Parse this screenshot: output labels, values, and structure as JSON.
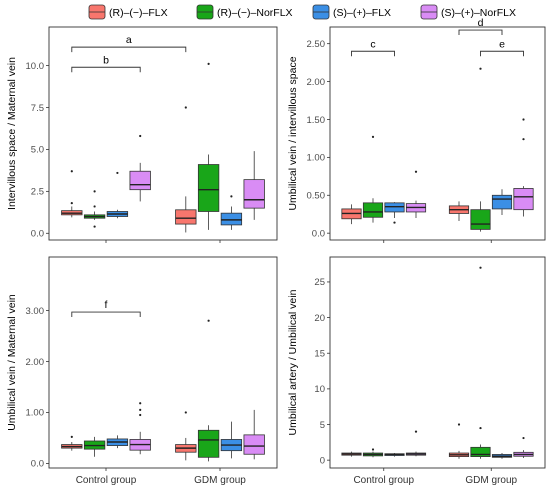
{
  "legend": {
    "position": "top",
    "items": [
      {
        "label": "(R)–(−)–FLX",
        "color": "#F8766D"
      },
      {
        "label": "(R)–(−)–NorFLX",
        "color": "#19A619"
      },
      {
        "label": "(S)–(+)–FLX",
        "color": "#3B8FE5"
      },
      {
        "label": "(S)–(+)–NorFLX",
        "color": "#D98CF5"
      }
    ]
  },
  "chart_data": [
    {
      "type": "box",
      "ylabel": "Intervillous space / Maternal vein",
      "categories": [
        "Control group",
        "GDM group"
      ],
      "ylim": [
        -0.4,
        12.3
      ],
      "yticks": [
        0.0,
        2.5,
        5.0,
        7.5,
        10.0
      ],
      "ytick_labels": [
        "0.0",
        "2.5",
        "5.0",
        "7.5",
        "10.0"
      ],
      "grid": false,
      "series": [
        {
          "name": "(R)–(−)–FLX",
          "boxes": [
            {
              "group": "Control group",
              "min": 0.95,
              "q1": 1.1,
              "median": 1.2,
              "q3": 1.35,
              "max": 1.6,
              "outliers": [
                3.7,
                1.8
              ]
            },
            {
              "group": "GDM group",
              "min": 0.05,
              "q1": 0.55,
              "median": 0.9,
              "q3": 1.4,
              "max": 2.2,
              "outliers": [
                7.5
              ]
            }
          ]
        },
        {
          "name": "(R)–(−)–NorFLX",
          "boxes": [
            {
              "group": "Control group",
              "min": 0.8,
              "q1": 0.9,
              "median": 1.0,
              "q3": 1.1,
              "max": 1.3,
              "outliers": [
                2.5,
                1.6,
                0.4
              ]
            },
            {
              "group": "GDM group",
              "min": 0.2,
              "q1": 1.3,
              "median": 2.6,
              "q3": 4.1,
              "max": 4.7,
              "outliers": [
                10.1
              ]
            }
          ]
        },
        {
          "name": "(S)–(+)–FLX",
          "boxes": [
            {
              "group": "Control group",
              "min": 0.9,
              "q1": 1.0,
              "median": 1.15,
              "q3": 1.3,
              "max": 1.4,
              "outliers": [
                3.6
              ]
            },
            {
              "group": "GDM group",
              "min": 0.2,
              "q1": 0.5,
              "median": 0.8,
              "q3": 1.2,
              "max": 1.6,
              "outliers": [
                2.2
              ]
            }
          ]
        },
        {
          "name": "(S)–(+)–NorFLX",
          "boxes": [
            {
              "group": "Control group",
              "min": 1.9,
              "q1": 2.6,
              "median": 2.9,
              "q3": 3.7,
              "max": 4.2,
              "outliers": [
                5.8
              ]
            },
            {
              "group": "GDM group",
              "min": 0.8,
              "q1": 1.5,
              "median": 2.0,
              "q3": 3.2,
              "max": 4.9,
              "outliers": []
            }
          ]
        }
      ],
      "brackets": [
        {
          "label": "a",
          "from_group": 0,
          "from_series": 0,
          "to_group": 1,
          "to_series": 0,
          "y": 11.1
        },
        {
          "label": "b",
          "from_group": 0,
          "from_series": 0,
          "to_group": 0,
          "to_series": 3,
          "y": 9.9
        }
      ]
    },
    {
      "type": "box",
      "ylabel": "Umbilical vein / intervillous space",
      "categories": [
        "Control group",
        "GDM group"
      ],
      "ylim": [
        -0.09,
        2.72
      ],
      "yticks": [
        0.0,
        0.5,
        1.0,
        1.5,
        2.0,
        2.5
      ],
      "ytick_labels": [
        "0.0",
        "0.50",
        "1.00",
        "1.50",
        "2.00",
        "2.50"
      ],
      "grid": false,
      "series": [
        {
          "name": "(R)–(−)–FLX",
          "boxes": [
            {
              "group": "Control group",
              "min": 0.12,
              "q1": 0.19,
              "median": 0.26,
              "q3": 0.32,
              "max": 0.38,
              "outliers": []
            },
            {
              "group": "GDM group",
              "min": 0.16,
              "q1": 0.26,
              "median": 0.31,
              "q3": 0.36,
              "max": 0.42,
              "outliers": []
            }
          ]
        },
        {
          "name": "(R)–(−)–NorFLX",
          "boxes": [
            {
              "group": "Control group",
              "min": 0.14,
              "q1": 0.21,
              "median": 0.28,
              "q3": 0.4,
              "max": 0.46,
              "outliers": [
                1.27
              ]
            },
            {
              "group": "GDM group",
              "min": 0.02,
              "q1": 0.05,
              "median": 0.12,
              "q3": 0.31,
              "max": 0.42,
              "outliers": [
                2.17
              ]
            }
          ]
        },
        {
          "name": "(S)–(+)–FLX",
          "boxes": [
            {
              "group": "Control group",
              "min": 0.2,
              "q1": 0.28,
              "median": 0.35,
              "q3": 0.4,
              "max": 0.41,
              "outliers": [
                0.14
              ]
            },
            {
              "group": "GDM group",
              "min": 0.24,
              "q1": 0.32,
              "median": 0.45,
              "q3": 0.5,
              "max": 0.58,
              "outliers": []
            }
          ]
        },
        {
          "name": "(S)–(+)–NorFLX",
          "boxes": [
            {
              "group": "Control group",
              "min": 0.2,
              "q1": 0.28,
              "median": 0.34,
              "q3": 0.39,
              "max": 0.43,
              "outliers": [
                0.81
              ]
            },
            {
              "group": "GDM group",
              "min": 0.22,
              "q1": 0.31,
              "median": 0.48,
              "q3": 0.59,
              "max": 0.62,
              "outliers": [
                1.5,
                1.24
              ]
            }
          ]
        }
      ],
      "brackets": [
        {
          "label": "c",
          "from_group": 0,
          "from_series": 0,
          "to_group": 0,
          "to_series": 2,
          "y": 2.4
        },
        {
          "label": "d",
          "from_group": 1,
          "from_series": 0,
          "to_group": 1,
          "to_series": 2,
          "y": 2.68
        },
        {
          "label": "e",
          "from_group": 1,
          "from_series": 1,
          "to_group": 1,
          "to_series": 3,
          "y": 2.4
        }
      ]
    },
    {
      "type": "box",
      "ylabel": "Umbilical vein / Maternal vein",
      "categories": [
        "Control group",
        "GDM group"
      ],
      "ylim": [
        -0.09,
        4.05
      ],
      "yticks": [
        0.0,
        1.0,
        2.0,
        3.0
      ],
      "ytick_labels": [
        "0.0",
        "1.00",
        "2.00",
        "3.00"
      ],
      "grid": false,
      "series": [
        {
          "name": "(R)–(−)–FLX",
          "boxes": [
            {
              "group": "Control group",
              "min": 0.25,
              "q1": 0.3,
              "median": 0.33,
              "q3": 0.37,
              "max": 0.42,
              "outliers": [
                0.52
              ]
            },
            {
              "group": "GDM group",
              "min": 0.06,
              "q1": 0.22,
              "median": 0.3,
              "q3": 0.37,
              "max": 0.5,
              "outliers": [
                1.0
              ]
            }
          ]
        },
        {
          "name": "(R)–(−)–NorFLX",
          "boxes": [
            {
              "group": "Control group",
              "min": 0.13,
              "q1": 0.28,
              "median": 0.35,
              "q3": 0.44,
              "max": 0.52,
              "outliers": []
            },
            {
              "group": "GDM group",
              "min": 0.04,
              "q1": 0.12,
              "median": 0.46,
              "q3": 0.65,
              "max": 0.75,
              "outliers": [
                2.8
              ]
            }
          ]
        },
        {
          "name": "(S)–(+)–FLX",
          "boxes": [
            {
              "group": "Control group",
              "min": 0.3,
              "q1": 0.35,
              "median": 0.42,
              "q3": 0.48,
              "max": 0.55,
              "outliers": []
            },
            {
              "group": "GDM group",
              "min": 0.1,
              "q1": 0.25,
              "median": 0.36,
              "q3": 0.47,
              "max": 0.82,
              "outliers": []
            }
          ]
        },
        {
          "name": "(S)–(+)–NorFLX",
          "boxes": [
            {
              "group": "Control group",
              "min": 0.18,
              "q1": 0.26,
              "median": 0.37,
              "q3": 0.47,
              "max": 0.62,
              "outliers": [
                1.18,
                1.05,
                0.95
              ]
            },
            {
              "group": "GDM group",
              "min": 0.08,
              "q1": 0.18,
              "median": 0.34,
              "q3": 0.56,
              "max": 1.05,
              "outliers": []
            }
          ]
        }
      ],
      "brackets": [
        {
          "label": "f",
          "from_group": 0,
          "from_series": 0,
          "to_group": 0,
          "to_series": 3,
          "y": 2.97
        }
      ]
    },
    {
      "type": "box",
      "ylabel": "Umbilical artery / Umbilical vein",
      "categories": [
        "Control group",
        "GDM group"
      ],
      "ylim": [
        -1.1,
        28.5
      ],
      "yticks": [
        0,
        5,
        10,
        15,
        20,
        25
      ],
      "ytick_labels": [
        "0",
        "5",
        "10",
        "15",
        "20",
        "25"
      ],
      "grid": false,
      "series": [
        {
          "name": "(R)–(−)–FLX",
          "boxes": [
            {
              "group": "Control group",
              "min": 0.5,
              "q1": 0.7,
              "median": 0.85,
              "q3": 1.0,
              "max": 1.2,
              "outliers": []
            },
            {
              "group": "GDM group",
              "min": 0.2,
              "q1": 0.5,
              "median": 0.75,
              "q3": 1.0,
              "max": 1.3,
              "outliers": [
                5.0
              ]
            }
          ]
        },
        {
          "name": "(R)–(−)–NorFLX",
          "boxes": [
            {
              "group": "Control group",
              "min": 0.4,
              "q1": 0.6,
              "median": 0.8,
              "q3": 1.0,
              "max": 1.2,
              "outliers": [
                1.5
              ]
            },
            {
              "group": "GDM group",
              "min": 0.2,
              "q1": 0.5,
              "median": 0.8,
              "q3": 1.8,
              "max": 2.2,
              "outliers": [
                27.0,
                4.5
              ]
            }
          ]
        },
        {
          "name": "(S)–(+)–FLX",
          "boxes": [
            {
              "group": "Control group",
              "min": 0.5,
              "q1": 0.65,
              "median": 0.8,
              "q3": 0.9,
              "max": 1.0,
              "outliers": []
            },
            {
              "group": "GDM group",
              "min": 0.2,
              "q1": 0.4,
              "median": 0.55,
              "q3": 0.8,
              "max": 1.0,
              "outliers": []
            }
          ]
        },
        {
          "name": "(S)–(+)–NorFLX",
          "boxes": [
            {
              "group": "Control group",
              "min": 0.55,
              "q1": 0.7,
              "median": 0.85,
              "q3": 1.0,
              "max": 1.2,
              "outliers": [
                4.0
              ]
            },
            {
              "group": "GDM group",
              "min": 0.3,
              "q1": 0.55,
              "median": 0.8,
              "q3": 1.1,
              "max": 1.4,
              "outliers": [
                3.1
              ]
            }
          ]
        }
      ],
      "brackets": []
    }
  ]
}
